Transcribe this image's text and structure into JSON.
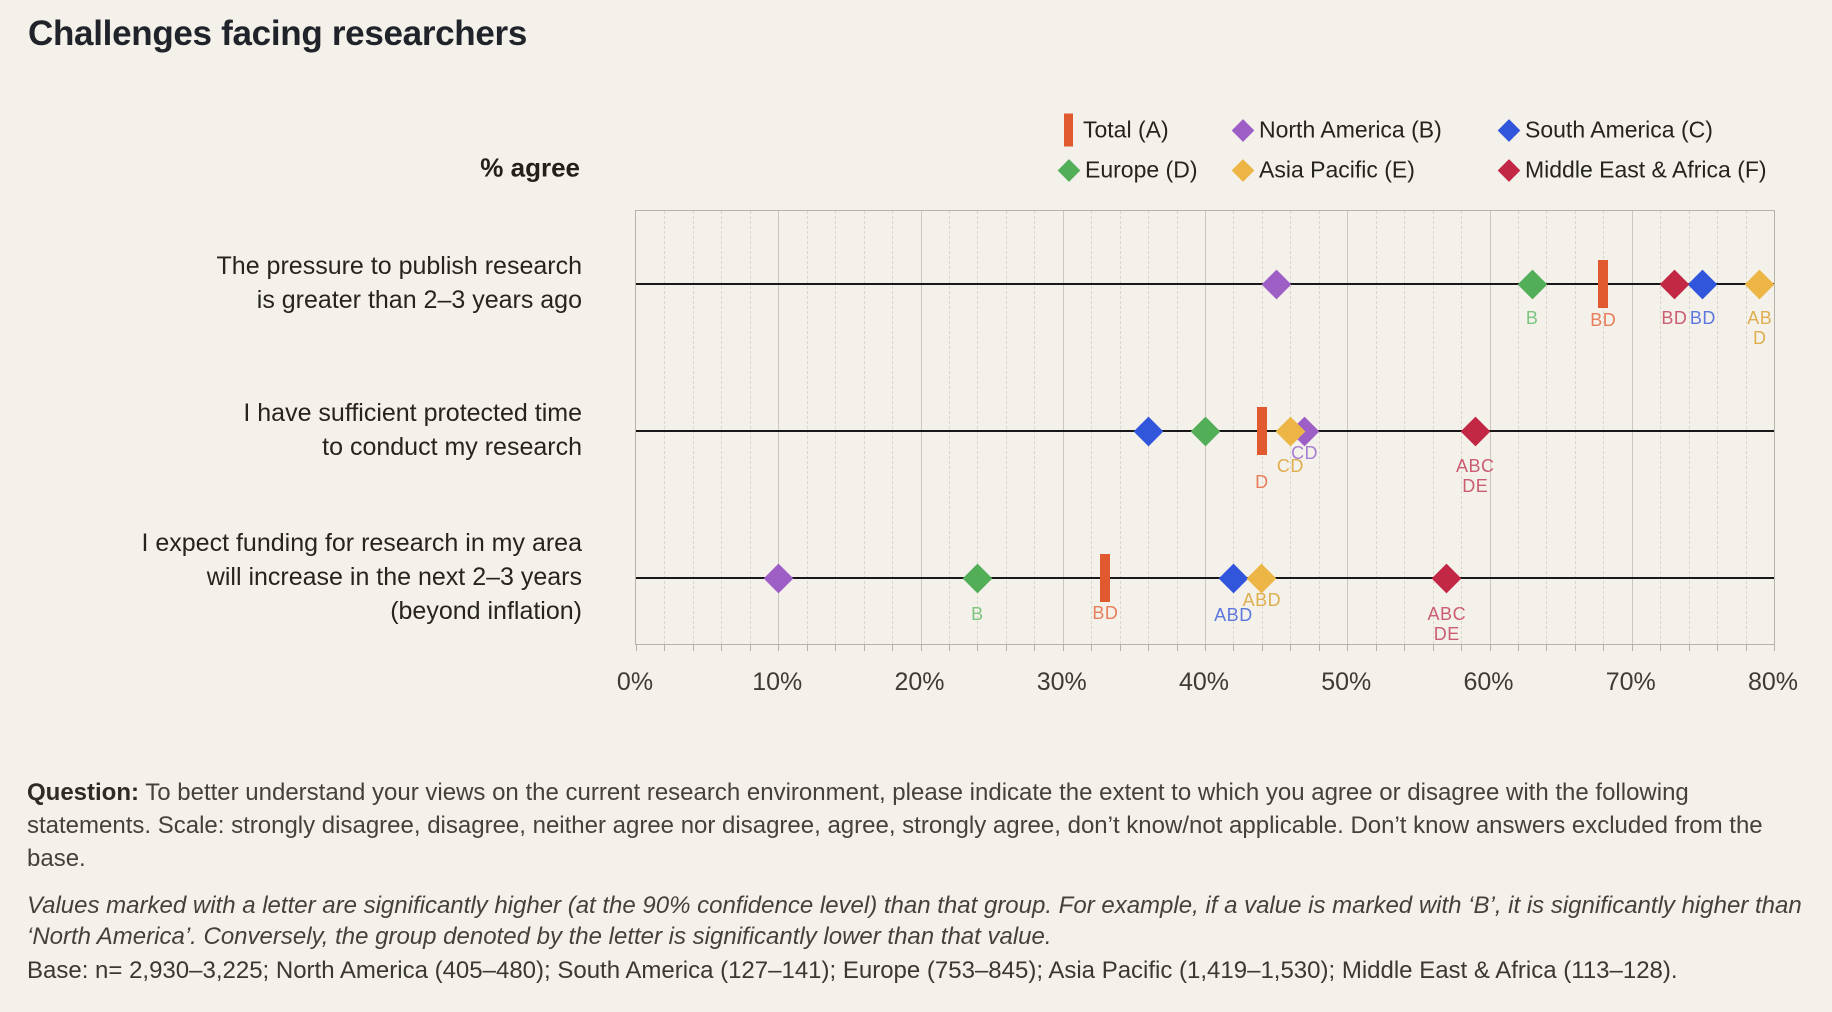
{
  "header": {
    "title": "Challenges facing researchers"
  },
  "axis_header": "% agree",
  "legend": {
    "rows": [
      [
        "A",
        "B",
        "C"
      ],
      [
        "D",
        "E",
        "F"
      ]
    ]
  },
  "chart_data": {
    "type": "scatter",
    "title": "Challenges facing researchers",
    "xlabel": "% agree",
    "xlim": [
      0,
      80
    ],
    "x_ticks": [
      "0%",
      "10%",
      "20%",
      "30%",
      "40%",
      "50%",
      "60%",
      "70%",
      "80%"
    ],
    "grid": "vertical: solid major every 10%, dashed minor every 2%; horizontal black line per category",
    "legend_position": "top-right, two rows",
    "series": [
      {
        "key": "A",
        "name": "Total (A)",
        "marker": "bar",
        "color": "#e15a2f",
        "label_color": "#e87e5b",
        "values": [
          68,
          44,
          33
        ]
      },
      {
        "key": "B",
        "name": "North America (B)",
        "marker": "diamond",
        "color": "#9d5fc6",
        "label_color": "#a77fd2",
        "values": [
          45,
          47,
          10
        ]
      },
      {
        "key": "C",
        "name": "South America (C)",
        "marker": "diamond",
        "color": "#3156dc",
        "label_color": "#5c77de",
        "values": [
          75,
          36,
          42
        ]
      },
      {
        "key": "D",
        "name": "Europe (D)",
        "marker": "diamond",
        "color": "#53ae58",
        "label_color": "#7dc481",
        "values": [
          63,
          40,
          24
        ]
      },
      {
        "key": "E",
        "name": "Asia Pacific (E)",
        "marker": "diamond",
        "color": "#ecb545",
        "label_color": "#dfae4f",
        "values": [
          79,
          46,
          44
        ]
      },
      {
        "key": "F",
        "name": "Middle East & Africa (F)",
        "marker": "diamond",
        "color": "#c22744",
        "label_color": "#cb5d72",
        "values": [
          73,
          59,
          57
        ]
      }
    ],
    "categories": [
      "The pressure to publish research is greater than 2–3 years ago",
      "I have sufficient protected time to conduct my research",
      "I expect funding for research in my area will increase in the next 2–3 years (beyond inflation)"
    ],
    "rows": [
      {
        "label_lines": [
          "The pressure to publish research",
          "is greater than 2–3 years ago"
        ],
        "points": [
          {
            "series": "A",
            "value": 68,
            "sig": [
              "BD"
            ],
            "label_dy": 26
          },
          {
            "series": "B",
            "value": 45,
            "sig": []
          },
          {
            "series": "C",
            "value": 75,
            "sig": [
              "BD"
            ],
            "label_dy": 24
          },
          {
            "series": "D",
            "value": 63,
            "sig": [
              "B"
            ],
            "label_dy": 24
          },
          {
            "series": "E",
            "value": 79,
            "sig": [
              "AB",
              "D"
            ],
            "label_dy": 24
          },
          {
            "series": "F",
            "value": 73,
            "sig": [
              "BD"
            ],
            "label_dy": 24
          }
        ]
      },
      {
        "label_lines": [
          "I have sufficient protected time",
          "to conduct my research"
        ],
        "points": [
          {
            "series": "A",
            "value": 44,
            "sig": [
              "D"
            ],
            "label_dy": 41
          },
          {
            "series": "B",
            "value": 47,
            "sig": [
              "CD"
            ],
            "label_dy": 12
          },
          {
            "series": "C",
            "value": 36,
            "sig": []
          },
          {
            "series": "D",
            "value": 40,
            "sig": []
          },
          {
            "series": "E",
            "value": 46,
            "sig": [
              "CD"
            ],
            "label_dy": 25
          },
          {
            "series": "F",
            "value": 59,
            "sig": [
              "ABC",
              "DE"
            ],
            "label_dy": 25
          }
        ]
      },
      {
        "label_lines": [
          "I expect funding for research in my area",
          "will increase in the next 2–3 years",
          "(beyond inflation)"
        ],
        "points": [
          {
            "series": "A",
            "value": 33,
            "sig": [
              "BD"
            ],
            "label_dy": 25
          },
          {
            "series": "B",
            "value": 10,
            "sig": []
          },
          {
            "series": "C",
            "value": 42,
            "sig": [
              "ABD"
            ],
            "label_dy": 27
          },
          {
            "series": "D",
            "value": 24,
            "sig": [
              "B"
            ],
            "label_dy": 26
          },
          {
            "series": "E",
            "value": 44,
            "sig": [
              "ABD"
            ],
            "label_dy": 12
          },
          {
            "series": "F",
            "value": 57,
            "sig": [
              "ABC",
              "DE"
            ],
            "label_dy": 26
          }
        ]
      }
    ]
  },
  "footer": {
    "question": {
      "label": "Question:",
      "text": "To better understand your views on the current research environment, please indicate the extent to which you agree or disagree with the following statements. Scale: strongly disagree, disagree, neither agree nor disagree, agree, strongly agree, don’t know/not applicable. Don’t know answers excluded from the base."
    },
    "note": "Values marked with a letter are significantly higher (at the 90% confidence level) than that group. For example, if a value is marked with ‘B’, it is significantly higher than ‘North America’. Conversely, the group denoted by the letter is significantly lower than that value.",
    "base": "Base: n= 2,930–3,225; North America (405–480); South America (127–141); Europe (753–845); Asia Pacific (1,419–1,530); Middle East & Africa (113–128)."
  },
  "colors": {
    "background": "#f4f1ea",
    "row_line": "#181818",
    "plot_border": "#b7b3aa",
    "grid_major": "#ccc8bf",
    "grid_minor": "#dad6cd",
    "title_text": "#20232a",
    "body_text": "#45413a"
  }
}
